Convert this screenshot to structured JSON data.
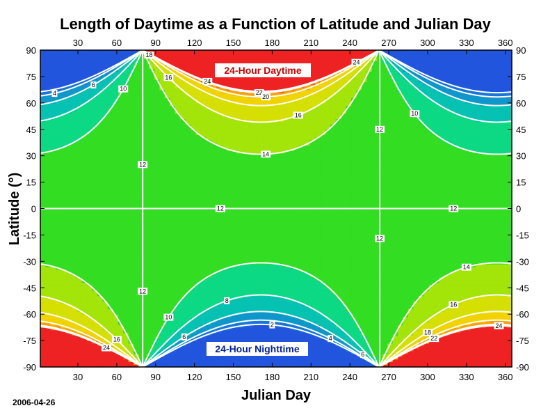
{
  "chart_data": {
    "type": "heatmap",
    "title": "Length of Daytime as a Function of Latitude and Julian Day",
    "xlabel": "Julian Day",
    "ylabel": "Latitude (°)",
    "xlim": [
      1,
      365
    ],
    "ylim": [
      -90,
      90
    ],
    "xticks": [
      30,
      60,
      90,
      120,
      150,
      180,
      210,
      240,
      270,
      300,
      330,
      360
    ],
    "yticks": [
      90,
      75,
      60,
      45,
      30,
      15,
      0,
      -15,
      -30,
      -45,
      -60,
      -75,
      -90
    ],
    "contour_levels": [
      2,
      4,
      6,
      8,
      10,
      12,
      14,
      16,
      18,
      20,
      22,
      24
    ],
    "annotations": {
      "top": "24-Hour Daytime",
      "bottom": "24-Hour Nighttime"
    },
    "colors": {
      "polar_day": "#ee2222",
      "polar_night": "#2255dd",
      "mid": "#33dd22",
      "contour_line": "#ffffff"
    },
    "footer_date": "2006-04-26"
  }
}
